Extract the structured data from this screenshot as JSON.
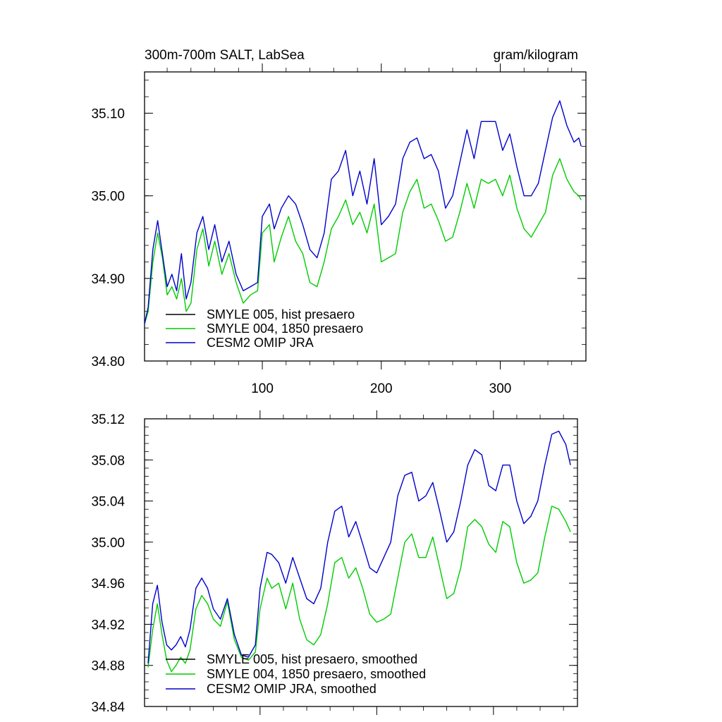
{
  "chart_data": [
    {
      "type": "line",
      "title": "300m-700m SALT, LabSea",
      "units": "gram/kilogram",
      "xlim": [
        1,
        372
      ],
      "ylim": [
        34.8,
        35.15
      ],
      "x_ticks": [
        100,
        200,
        300
      ],
      "x_tick_labels": [
        "100",
        "200",
        "300"
      ],
      "y_ticks": [
        34.8,
        34.9,
        35.0,
        35.1
      ],
      "y_tick_labels": [
        "34.80",
        "34.90",
        "35.00",
        "35.10"
      ],
      "legend": [
        "SMYLE 005, hist presaero",
        "SMYLE 004, 1850 presaero",
        "CESM2 OMIP JRA"
      ],
      "legend_position": "bottom-left",
      "series": [
        {
          "name": "SMYLE 005, hist presaero",
          "color": "#000000",
          "values": []
        },
        {
          "name": "SMYLE 004, 1850 presaero",
          "color": "#00cc00",
          "x": [
            1,
            4,
            8,
            12,
            16,
            20,
            24,
            28,
            32,
            36,
            40,
            45,
            50,
            55,
            60,
            66,
            72,
            78,
            84,
            90,
            96,
            100,
            106,
            110,
            116,
            122,
            128,
            134,
            140,
            146,
            152,
            158,
            164,
            170,
            176,
            182,
            188,
            194,
            200,
            206,
            212,
            218,
            224,
            230,
            236,
            242,
            248,
            254,
            260,
            266,
            272,
            278,
            284,
            290,
            296,
            302,
            308,
            314,
            320,
            326,
            332,
            338,
            344,
            350,
            356,
            362,
            366,
            368
          ],
          "values": [
            34.845,
            34.86,
            34.92,
            34.955,
            34.925,
            34.88,
            34.89,
            34.875,
            34.9,
            34.86,
            34.87,
            34.935,
            34.96,
            34.915,
            34.945,
            34.905,
            34.93,
            34.895,
            34.87,
            34.88,
            34.885,
            34.955,
            34.965,
            34.92,
            34.95,
            34.975,
            34.945,
            34.93,
            34.895,
            34.89,
            34.92,
            34.96,
            34.975,
            34.995,
            34.965,
            34.98,
            34.955,
            34.99,
            34.92,
            34.925,
            34.93,
            34.98,
            35.005,
            35.02,
            34.985,
            34.99,
            34.97,
            34.945,
            34.95,
            34.98,
            35.015,
            34.985,
            35.02,
            35.015,
            35.02,
            35.0,
            35.025,
            34.985,
            34.96,
            34.95,
            34.965,
            34.98,
            35.025,
            35.045,
            35.02,
            35.005,
            35.0,
            34.995
          ]
        },
        {
          "name": "CESM2 OMIP JRA",
          "color": "#0000cc",
          "x": [
            1,
            4,
            8,
            12,
            16,
            20,
            24,
            28,
            32,
            36,
            40,
            45,
            50,
            55,
            60,
            66,
            72,
            78,
            84,
            90,
            96,
            100,
            106,
            110,
            116,
            122,
            128,
            134,
            140,
            146,
            152,
            158,
            164,
            170,
            176,
            182,
            188,
            194,
            200,
            206,
            212,
            218,
            224,
            230,
            236,
            242,
            248,
            254,
            260,
            266,
            272,
            278,
            284,
            290,
            296,
            302,
            308,
            314,
            320,
            326,
            332,
            338,
            344,
            350,
            356,
            362,
            366,
            368
          ],
          "values": [
            34.845,
            34.865,
            34.935,
            34.97,
            34.93,
            34.89,
            34.905,
            34.885,
            34.93,
            34.875,
            34.895,
            34.955,
            34.975,
            34.935,
            34.965,
            34.92,
            34.945,
            34.905,
            34.885,
            34.89,
            34.895,
            34.975,
            34.99,
            34.96,
            34.985,
            35.0,
            34.99,
            34.965,
            34.935,
            34.925,
            34.955,
            35.02,
            35.03,
            35.055,
            35.0,
            35.03,
            34.99,
            35.045,
            34.965,
            34.975,
            34.99,
            35.045,
            35.065,
            35.07,
            35.045,
            35.05,
            35.03,
            34.985,
            35.0,
            35.04,
            35.08,
            35.045,
            35.09,
            35.09,
            35.09,
            35.055,
            35.075,
            35.035,
            35.0,
            35.0,
            35.015,
            35.055,
            35.095,
            35.115,
            35.085,
            35.065,
            35.07,
            35.06
          ]
        }
      ]
    },
    {
      "type": "line",
      "title": "",
      "xlim": [
        1,
        372
      ],
      "ylim": [
        34.84,
        35.12
      ],
      "y_ticks": [
        34.84,
        34.88,
        34.92,
        34.96,
        35.0,
        35.04,
        35.08,
        35.12
      ],
      "y_tick_labels": [
        "34.84",
        "34.88",
        "34.92",
        "34.96",
        "35.00",
        "35.04",
        "35.08",
        "35.12"
      ],
      "legend": [
        "SMYLE 005, hist presaero, smoothed",
        "SMYLE 004, 1850 presaero, smoothed",
        "CESM2 OMIP JRA, smoothed"
      ],
      "legend_position": "bottom-left",
      "series": [
        {
          "name": "SMYLE 005, hist presaero, smoothed",
          "color": "#000000",
          "values": []
        },
        {
          "name": "SMYLE 004, 1850 presaero, smoothed",
          "color": "#00cc00",
          "x": [
            4,
            8,
            12,
            16,
            20,
            24,
            28,
            32,
            36,
            40,
            45,
            50,
            55,
            60,
            66,
            72,
            78,
            84,
            90,
            96,
            100,
            106,
            110,
            116,
            122,
            128,
            134,
            140,
            146,
            152,
            158,
            164,
            170,
            176,
            182,
            188,
            194,
            200,
            206,
            212,
            218,
            224,
            230,
            236,
            242,
            248,
            254,
            260,
            266,
            272,
            278,
            284,
            290,
            296,
            302,
            308,
            314,
            320,
            326,
            332,
            338,
            344,
            350,
            356,
            362,
            366
          ],
          "values": [
            34.878,
            34.915,
            34.94,
            34.91,
            34.885,
            34.874,
            34.88,
            34.888,
            34.882,
            34.895,
            34.935,
            34.948,
            34.94,
            34.925,
            34.918,
            34.942,
            34.905,
            34.888,
            34.885,
            34.893,
            34.935,
            34.965,
            34.955,
            34.96,
            34.935,
            34.96,
            34.925,
            34.905,
            34.9,
            34.91,
            34.94,
            34.98,
            34.985,
            34.965,
            34.975,
            34.955,
            34.93,
            34.922,
            34.925,
            34.93,
            34.965,
            35.0,
            35.008,
            34.985,
            34.985,
            35.005,
            34.975,
            34.945,
            34.95,
            34.975,
            35.015,
            35.022,
            35.015,
            34.998,
            34.99,
            35.02,
            35.015,
            34.98,
            34.96,
            34.963,
            34.97,
            35.005,
            35.035,
            35.032,
            35.02,
            35.01
          ]
        },
        {
          "name": "CESM2 OMIP JRA, smoothed",
          "color": "#0000cc",
          "x": [
            4,
            8,
            12,
            16,
            20,
            24,
            28,
            32,
            36,
            40,
            45,
            50,
            55,
            60,
            66,
            72,
            78,
            84,
            90,
            96,
            100,
            106,
            110,
            116,
            122,
            128,
            134,
            140,
            146,
            152,
            158,
            164,
            170,
            176,
            182,
            188,
            194,
            200,
            206,
            212,
            218,
            224,
            230,
            236,
            242,
            248,
            254,
            260,
            266,
            272,
            278,
            284,
            290,
            296,
            302,
            308,
            314,
            320,
            326,
            332,
            338,
            344,
            350,
            356,
            362,
            366
          ],
          "values": [
            34.882,
            34.94,
            34.958,
            34.922,
            34.9,
            34.895,
            34.9,
            34.908,
            34.898,
            34.915,
            34.955,
            34.965,
            34.955,
            34.935,
            34.925,
            34.945,
            34.91,
            34.89,
            34.888,
            34.9,
            34.955,
            34.99,
            34.988,
            34.98,
            34.96,
            34.985,
            34.965,
            34.945,
            34.94,
            34.955,
            35.0,
            35.03,
            35.035,
            35.005,
            35.02,
            34.998,
            34.975,
            34.97,
            34.985,
            35.0,
            35.045,
            35.065,
            35.068,
            35.04,
            35.045,
            35.058,
            35.03,
            35.0,
            35.01,
            35.04,
            35.075,
            35.09,
            35.085,
            35.055,
            35.05,
            35.075,
            35.075,
            35.04,
            35.018,
            35.025,
            35.04,
            35.075,
            35.105,
            35.108,
            35.095,
            35.075
          ]
        }
      ]
    }
  ]
}
